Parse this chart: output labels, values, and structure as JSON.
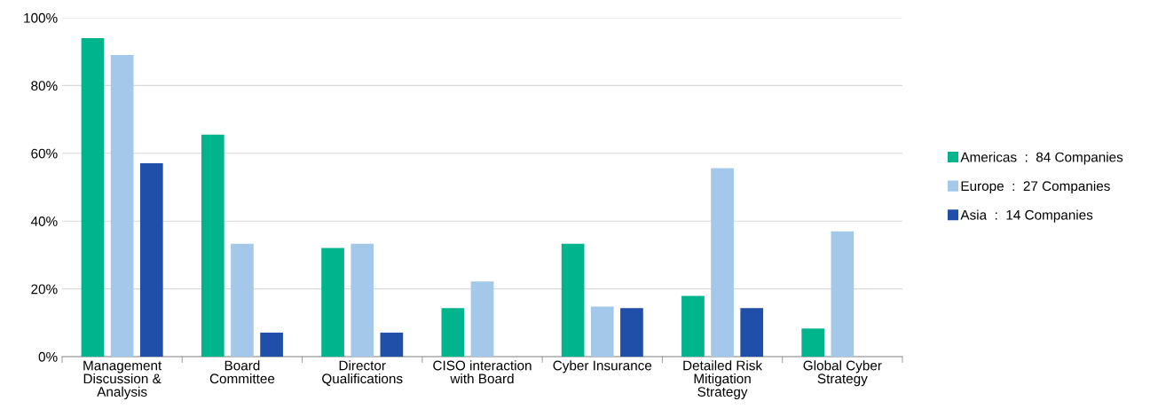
{
  "chart_data": {
    "type": "bar",
    "categories": [
      "Management\nDiscussion &\nAnalysis",
      "Board\nCommittee",
      "Director\nQualifications",
      "CISO interaction\nwith Board",
      "Cyber Insurance",
      "Detailed Risk\nMitigation\nStrategy",
      "Global Cyber\nStrategy"
    ],
    "series": [
      {
        "name": "Americas  :  84 Companies",
        "color": "#00b48c",
        "values": [
          94.0,
          65.5,
          32.1,
          14.3,
          33.3,
          17.9,
          8.3
        ]
      },
      {
        "name": "Europe  :  27 Companies",
        "color": "#a3c8ea",
        "values": [
          89.0,
          33.3,
          33.3,
          22.2,
          14.8,
          55.6,
          37.0
        ]
      },
      {
        "name": "Asia  :  14 Companies",
        "color": "#1f4fa8",
        "values": [
          57.1,
          7.1,
          7.1,
          0,
          14.3,
          14.3,
          0
        ]
      }
    ],
    "ylim": [
      0,
      100
    ],
    "yticks": [
      {
        "value": 0,
        "label": "0%"
      },
      {
        "value": 20,
        "label": "20%"
      },
      {
        "value": 40,
        "label": "40%"
      },
      {
        "value": 60,
        "label": "60%"
      },
      {
        "value": 80,
        "label": "80%"
      },
      {
        "value": 100,
        "label": "100%"
      }
    ],
    "grid": "y",
    "legend": "right"
  }
}
